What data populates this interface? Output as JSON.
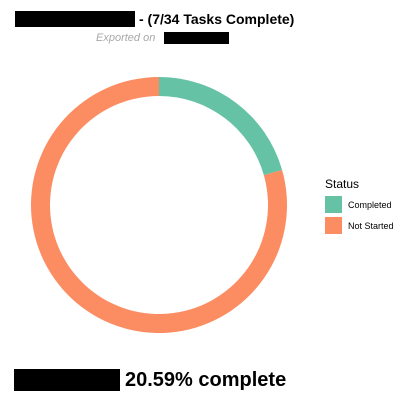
{
  "header": {
    "title_suffix": "- (7/34 Tasks Complete)",
    "subtitle": "Exported on"
  },
  "footer": {
    "percent_text": "20.59% complete"
  },
  "chart_data": {
    "type": "pie",
    "donut": true,
    "categories": [
      "Completed",
      "Not Started"
    ],
    "values": [
      7,
      27
    ],
    "colors": [
      "#66c2a5",
      "#fc8d62"
    ],
    "legend": {
      "title": "Status",
      "placement": "right"
    }
  }
}
